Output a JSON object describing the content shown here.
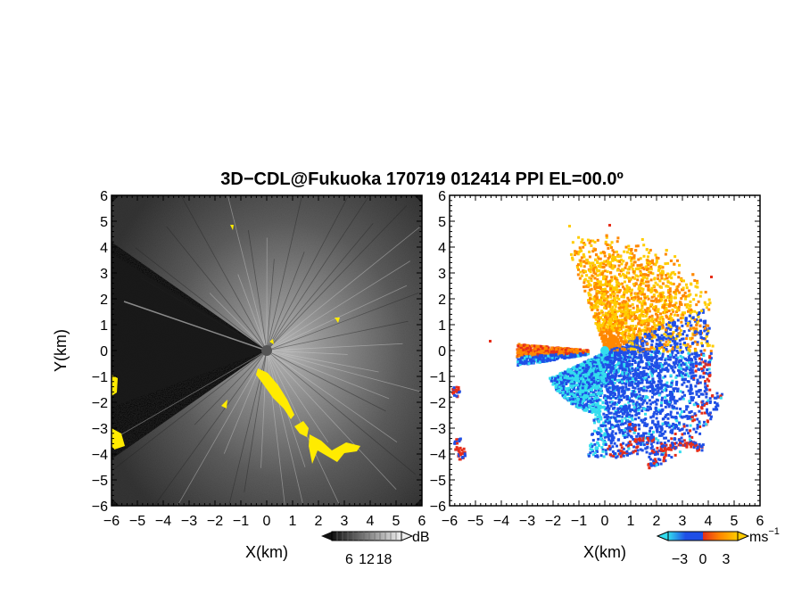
{
  "chart_data": [
    {
      "type": "heatmap",
      "panel": "reflectivity",
      "title": "3D−CDL@Fukuoka 170719 012414 PPI EL=00.0º",
      "xlabel": "X(km)",
      "ylabel": "Y(km)",
      "xlim": [
        -6,
        6
      ],
      "ylim": [
        -6,
        6
      ],
      "x_ticks": [
        "−6",
        "−5",
        "−4",
        "−3",
        "−2",
        "−1",
        "0",
        "1",
        "2",
        "3",
        "4",
        "5",
        "6"
      ],
      "y_ticks": [
        "6",
        "5",
        "4",
        "3",
        "2",
        "1",
        "0",
        "−1",
        "−2",
        "−3",
        "−4",
        "−5",
        "−6"
      ],
      "colorbar": {
        "unit": "dB",
        "ticks": [
          "6",
          "12",
          "18"
        ],
        "values": [
          6,
          12,
          18
        ]
      },
      "colors": {
        "background": "#000000",
        "near_field": "#b4b4b4",
        "highlight": "#ffeb00"
      }
    },
    {
      "type": "heatmap",
      "panel": "doppler-velocity",
      "xlabel": "X(km)",
      "xlim": [
        -6,
        6
      ],
      "ylim": [
        -6,
        6
      ],
      "x_ticks": [
        "−6",
        "−5",
        "−4",
        "−3",
        "−2",
        "−1",
        "0",
        "1",
        "2",
        "3",
        "4",
        "5",
        "6"
      ],
      "y_ticks": [
        "6",
        "5",
        "4",
        "3",
        "2",
        "1",
        "0",
        "−1",
        "−2",
        "−3",
        "−4",
        "−5",
        "−6"
      ],
      "colorbar": {
        "unit": "ms",
        "unit_exp": "−1",
        "ticks": [
          "−3",
          "0",
          "3"
        ],
        "values": [
          -3,
          0,
          3
        ]
      },
      "colors": {
        "cyan": "#33ddee",
        "blue": "#1f4fe6",
        "red": "#e62e1a",
        "orange": "#ff8800",
        "yellow": "#ffcc00"
      }
    }
  ]
}
